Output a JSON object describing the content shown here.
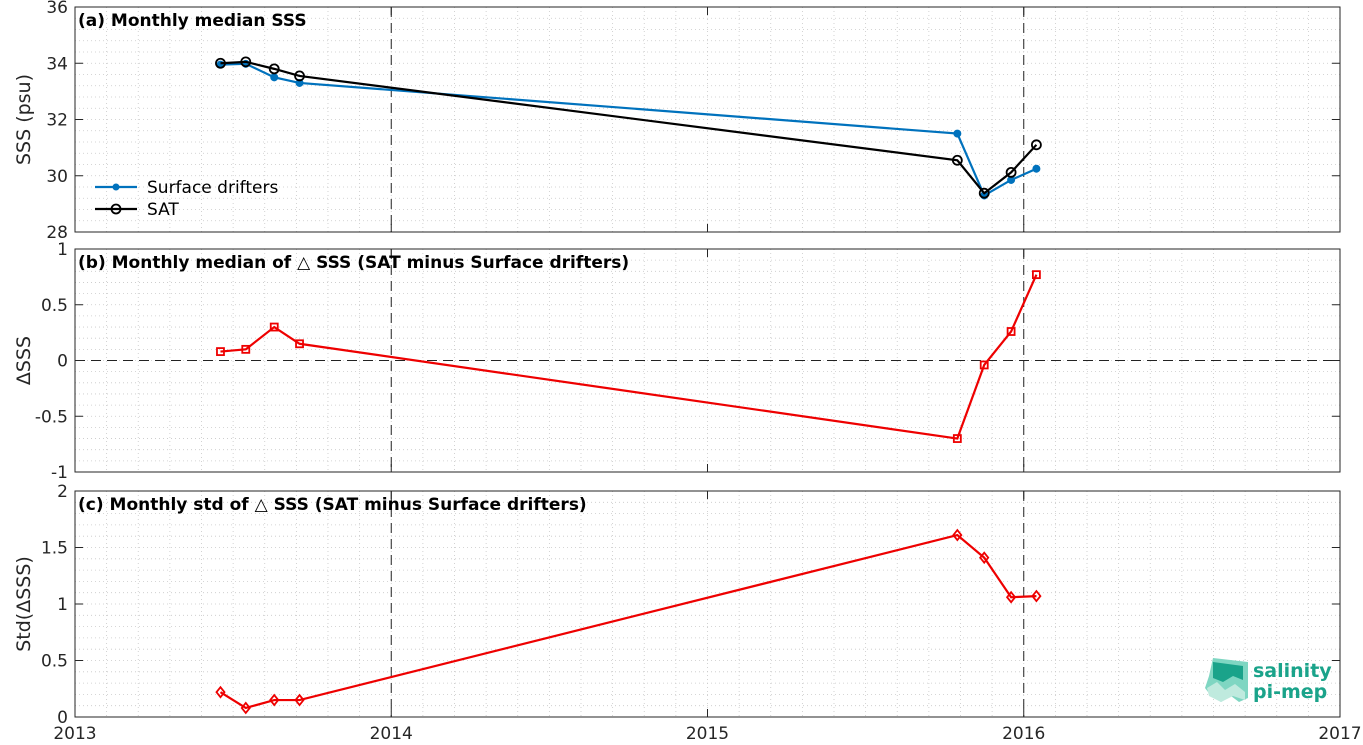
{
  "chart_data": [
    {
      "type": "line",
      "title": "(a) Monthly median SSS",
      "xlabel": "",
      "ylabel": "SSS (psu)",
      "xlim": [
        2013,
        2017
      ],
      "ylim": [
        28,
        36
      ],
      "yticks": [
        28,
        30,
        32,
        34,
        36
      ],
      "ytick_labels": [
        "28",
        "30",
        "32",
        "34",
        "36"
      ],
      "grid": true,
      "legend_position": "lower-left",
      "series": [
        {
          "name": "Surface drifters",
          "color": "#0072BD",
          "marker": "dot",
          "x": [
            2013.46,
            2013.54,
            2013.63,
            2013.71,
            2015.79,
            2015.875,
            2015.96,
            2016.04
          ],
          "y": [
            33.95,
            33.98,
            33.5,
            33.3,
            31.5,
            29.3,
            29.85,
            30.25
          ]
        },
        {
          "name": "SAT",
          "color": "#000000",
          "marker": "circle",
          "x": [
            2013.46,
            2013.54,
            2013.63,
            2013.71,
            2015.79,
            2015.875,
            2015.96,
            2016.04
          ],
          "y": [
            34.0,
            34.05,
            33.8,
            33.55,
            30.55,
            29.38,
            30.12,
            31.1
          ]
        }
      ]
    },
    {
      "type": "line",
      "title": "(b) Monthly median of △ SSS (SAT minus Surface drifters)",
      "xlabel": "",
      "ylabel": "ΔSSS",
      "xlim": [
        2013,
        2017
      ],
      "ylim": [
        -1,
        1
      ],
      "yticks": [
        -1,
        -0.5,
        0,
        0.5,
        1
      ],
      "ytick_labels": [
        "-1",
        "-0.5",
        "0",
        "0.5",
        "1"
      ],
      "grid": true,
      "series": [
        {
          "name": "",
          "color": "#EE0000",
          "marker": "square",
          "x": [
            2013.46,
            2013.54,
            2013.63,
            2013.71,
            2015.79,
            2015.875,
            2015.96,
            2016.04
          ],
          "y": [
            0.08,
            0.1,
            0.3,
            0.15,
            -0.7,
            -0.04,
            0.26,
            0.77
          ]
        }
      ]
    },
    {
      "type": "line",
      "title": "(c) Monthly std of △ SSS (SAT minus Surface drifters)",
      "xlabel": "",
      "ylabel": "Std(ΔSSS)",
      "xlim": [
        2013,
        2017
      ],
      "ylim": [
        0,
        2
      ],
      "yticks": [
        0,
        0.5,
        1,
        1.5,
        2
      ],
      "ytick_labels": [
        "0",
        "0.5",
        "1",
        "1.5",
        "2"
      ],
      "xticks": [
        2013,
        2014,
        2015,
        2016,
        2017
      ],
      "xtick_labels": [
        "2013",
        "2014",
        "2015",
        "2016",
        "2017"
      ],
      "grid": true,
      "series": [
        {
          "name": "",
          "color": "#EE0000",
          "marker": "diamond",
          "x": [
            2013.46,
            2013.54,
            2013.63,
            2013.71,
            2015.79,
            2015.875,
            2015.96,
            2016.04
          ],
          "y": [
            0.22,
            0.08,
            0.15,
            0.15,
            1.61,
            1.41,
            1.06,
            1.07
          ]
        }
      ]
    }
  ],
  "reference_lines": {
    "vertical_x": [
      2014,
      2016
    ],
    "horizontal_zero_panel": 1
  },
  "logo": {
    "line1": "salinity",
    "line2": "pi-mep",
    "color": "#1aa38a"
  }
}
